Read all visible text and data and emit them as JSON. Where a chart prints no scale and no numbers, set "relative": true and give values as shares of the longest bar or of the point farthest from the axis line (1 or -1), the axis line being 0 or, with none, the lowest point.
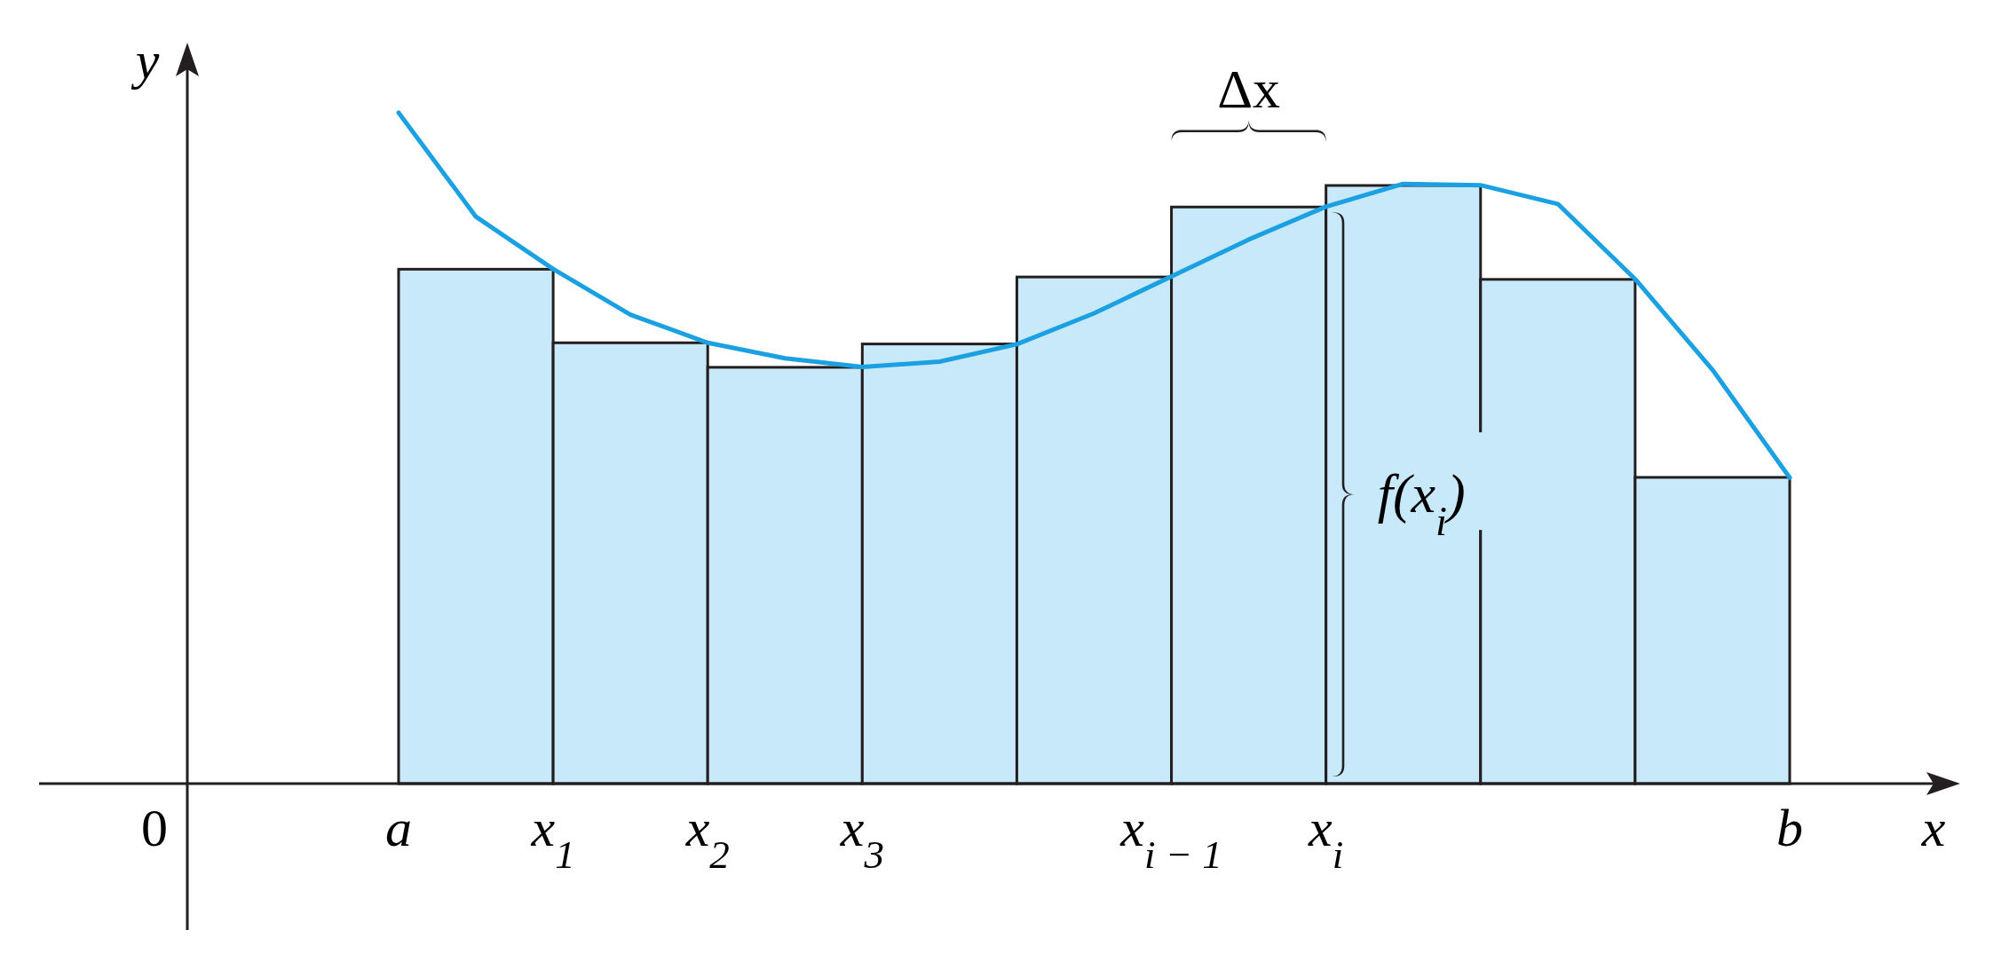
{
  "chart_data": [
    {
      "type": "bar",
      "relative": true,
      "categories": [
        null,
        null,
        null,
        null,
        null,
        null,
        null,
        null,
        null
      ],
      "values": [
        0.86,
        0.737,
        0.696,
        0.735,
        0.847,
        0.964,
        1,
        0.843,
        0.512
      ],
      "color": "#c8e9f9",
      "annotations": [
        "0",
        "Δx",
        "f(x$_{i}$)"
      ]
    },
    {
      "type": "line",
      "relative": true,
      "xlabel": "x",
      "ylabel": "y",
      "categories": [
        "a",
        null,
        "x$_{1}$",
        null,
        "x$_{2}$",
        null,
        "x$_{3}$",
        null,
        null,
        null,
        "x$_{i − 1}$",
        null,
        "x$_{i}$",
        null,
        null,
        null,
        null,
        null,
        "b"
      ],
      "series": [
        {
          "color": "#1ba1e2",
          "values": [
            1,
            0.845,
            0.767,
            0.699,
            0.657,
            0.634,
            0.621,
            0.629,
            0.655,
            0.701,
            0.756,
            0.811,
            0.86,
            0.894,
            0.892,
            0.864,
            0.752,
            0.617,
            0.456
          ]
        }
      ]
    }
  ]
}
